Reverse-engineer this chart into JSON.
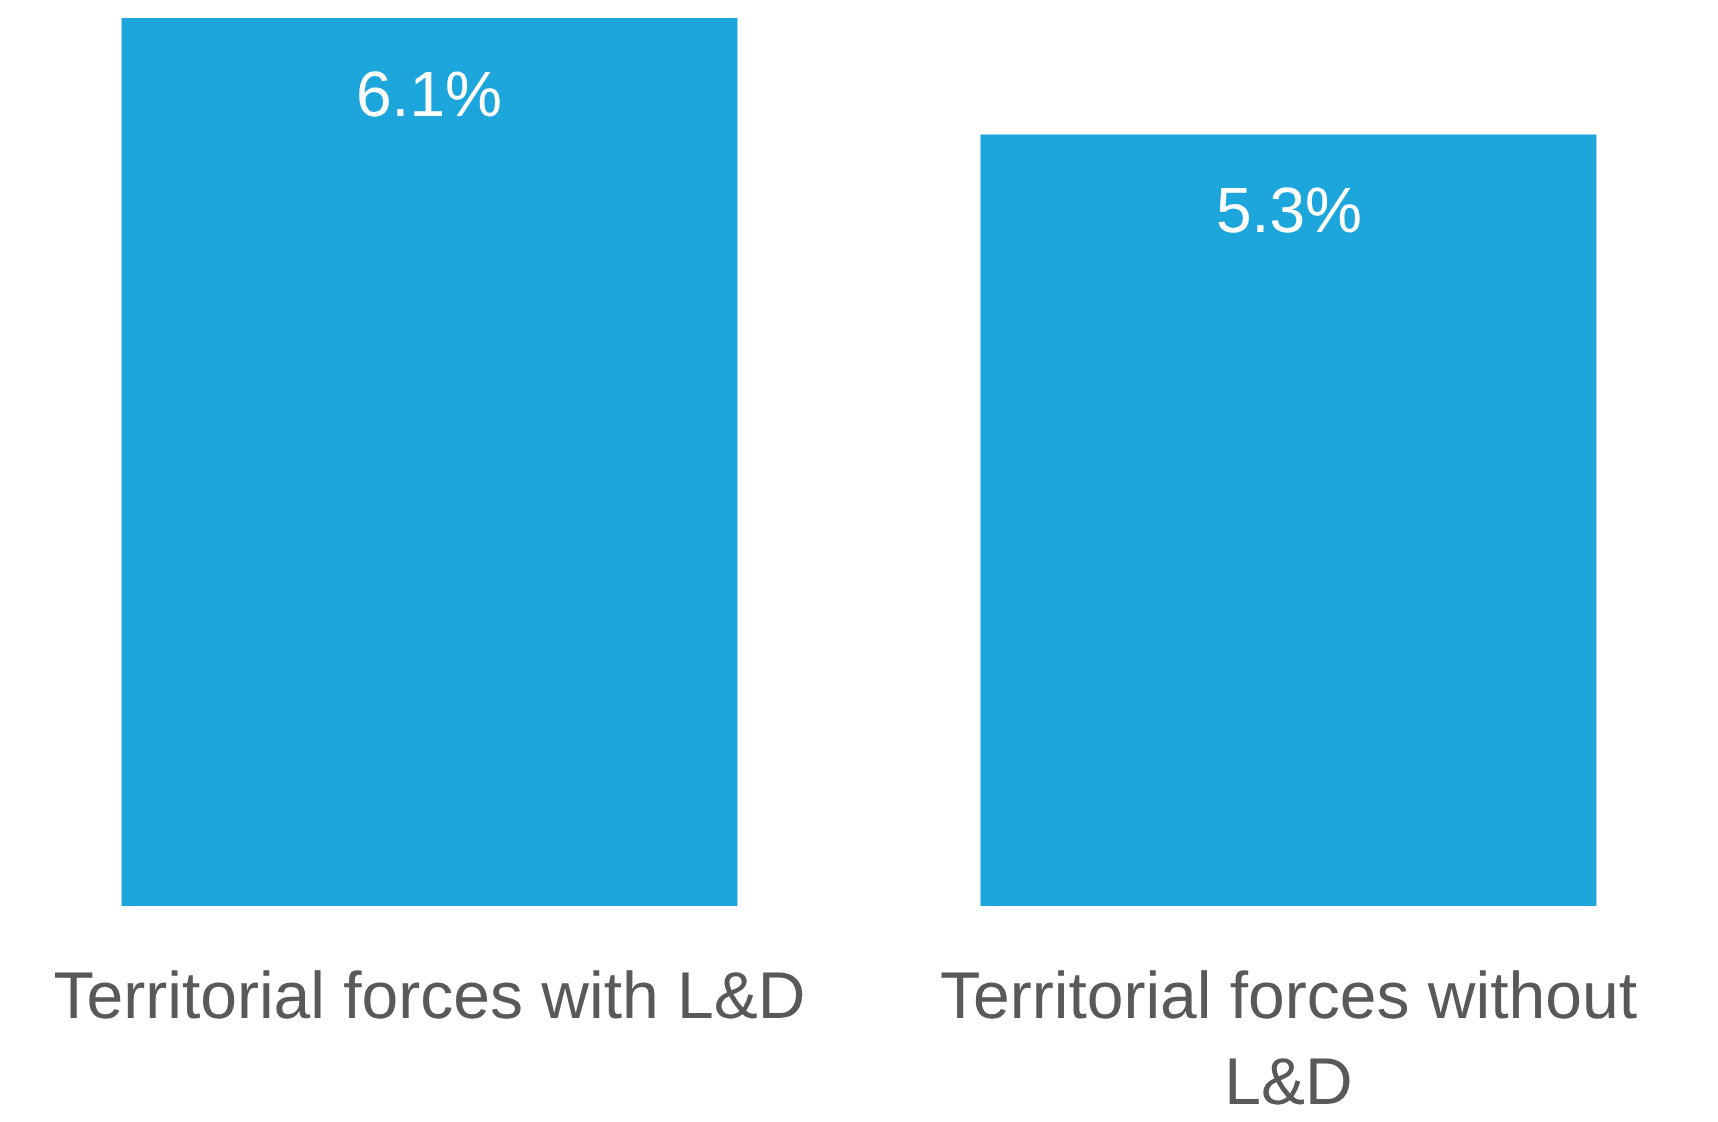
{
  "chart_data": {
    "type": "bar",
    "categories": [
      "Territorial forces with L&D",
      "Territorial forces without L&D"
    ],
    "values": [
      6.1,
      5.3
    ],
    "color": "#1ca6dc",
    "value_labels": [
      "6.1%",
      "5.3%"
    ],
    "ylim": [
      0,
      6.1
    ],
    "tick_labels": "x"
  }
}
